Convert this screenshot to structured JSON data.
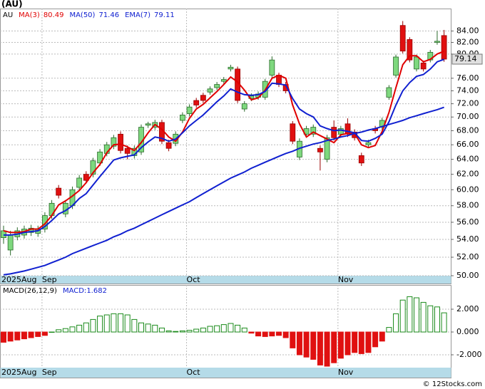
{
  "chart_data": [
    {
      "type": "candlestick",
      "title": "(AU)",
      "symbol": "AU",
      "categories": [
        "2025Aug",
        null,
        null,
        null,
        null,
        null,
        "Sep",
        null,
        null,
        null,
        null,
        null,
        null,
        null,
        null,
        null,
        null,
        null,
        null,
        null,
        null,
        null,
        null,
        null,
        null,
        null,
        null,
        "Oct",
        null,
        null,
        null,
        null,
        null,
        null,
        null,
        null,
        null,
        null,
        null,
        null,
        null,
        null,
        null,
        null,
        null,
        null,
        null,
        null,
        null,
        "Nov",
        null,
        null,
        null,
        null,
        null,
        null,
        null,
        null,
        null,
        null,
        null,
        null,
        null,
        null,
        null
      ],
      "open": [
        54.2,
        52.8,
        54.3,
        54.5,
        54.8,
        54.7,
        55.2,
        56.8,
        60.2,
        57,
        58,
        60.3,
        62,
        62,
        63.5,
        64.8,
        65.8,
        67.5,
        65.5,
        64.5,
        65,
        68.8,
        68.5,
        69.2,
        66.3,
        66.2,
        69.5,
        70.5,
        72.5,
        73.3,
        73.8,
        74.5,
        75.5,
        77.5,
        77.5,
        71.2,
        72.8,
        73,
        73,
        76.5,
        76.5,
        75,
        69,
        64.3,
        67.5,
        67.5,
        65.5,
        64,
        68.5,
        67.5,
        69,
        67.8,
        64.5,
        66,
        68.3,
        68.5,
        73,
        76.5,
        85,
        82.5,
        77.5,
        78.5,
        79,
        82,
        83.2
      ],
      "high": [
        55.6,
        55,
        55.4,
        55.6,
        55.7,
        55.6,
        57.2,
        58.7,
        60.6,
        58.7,
        60.4,
        61.9,
        62.4,
        64.2,
        65.4,
        66.4,
        67.4,
        67.9,
        65.9,
        65.9,
        68.9,
        69.3,
        69.6,
        69.6,
        66.7,
        67.9,
        70.7,
        71.9,
        72.9,
        73.7,
        74.7,
        75.4,
        76.2,
        78.2,
        77.9,
        72.4,
        73.6,
        73.9,
        75.9,
        79.6,
        76.9,
        75.4,
        69.4,
        66.9,
        68.7,
        68.9,
        65.9,
        67.4,
        69.5,
        68.7,
        69.8,
        68.2,
        64.9,
        66.7,
        68.7,
        69.9,
        74.9,
        79.9,
        85.8,
        82.9,
        79.9,
        78.9,
        80.7,
        84,
        84.2
      ],
      "low": [
        53.5,
        52.2,
        53.9,
        54.1,
        54.4,
        54.3,
        54.8,
        56.4,
        58.9,
        56.6,
        57.6,
        59.9,
        60.8,
        61.6,
        63.1,
        64.4,
        65.4,
        64.8,
        64,
        64.1,
        64.6,
        68.4,
        68.1,
        66.1,
        65.1,
        65.8,
        69.1,
        70.1,
        71.4,
        72.1,
        73.4,
        74.1,
        75.1,
        77.1,
        72.1,
        70.8,
        72.4,
        72.6,
        72.6,
        76.1,
        74.6,
        73.6,
        66.1,
        63.9,
        67.1,
        67.1,
        62.5,
        63.6,
        66.6,
        67.1,
        67.1,
        66.6,
        63.1,
        65.6,
        67.6,
        68.1,
        72.6,
        76.1,
        80.1,
        78.6,
        77.1,
        77.1,
        78.6,
        81.6,
        78.7
      ],
      "close": [
        55,
        54.5,
        55,
        55.2,
        55.3,
        55.2,
        56.8,
        58.3,
        59.3,
        58.3,
        60,
        61.5,
        61.2,
        63.8,
        65,
        66,
        67,
        65.2,
        64.8,
        65.5,
        68.5,
        69,
        69.2,
        66.5,
        65.5,
        67.5,
        70.3,
        71.5,
        71.8,
        72.5,
        74.3,
        75,
        75.8,
        77.8,
        72.5,
        72,
        73.2,
        73.5,
        75.5,
        79,
        75,
        74,
        66.5,
        66.5,
        68.3,
        68.5,
        65,
        67,
        67,
        68.3,
        67.5,
        67,
        63.5,
        66.3,
        68,
        69.5,
        74.5,
        79.5,
        80.5,
        79,
        79.5,
        77.5,
        80.3,
        82.2,
        79.14
      ],
      "up_color": "#7ed87e",
      "down_color": "#e01010",
      "series": [
        {
          "name": "MA(3)",
          "color": "#e00000",
          "values": [
            55,
            54.8,
            54.8,
            54.9,
            55.2,
            55.2,
            55.8,
            56.8,
            58.1,
            58.6,
            59.2,
            59.9,
            60.9,
            62.2,
            63.3,
            64.9,
            66,
            66.1,
            65.7,
            65.2,
            66.3,
            67.7,
            68.9,
            68.2,
            67.1,
            66.5,
            67.8,
            69.8,
            71.2,
            71.9,
            72.9,
            73.9,
            75,
            76.2,
            75.4,
            74.1,
            72.6,
            72.9,
            74.1,
            76,
            76.5,
            76,
            71.8,
            69,
            67.1,
            67.8,
            67.3,
            66.8,
            66.3,
            67.4,
            67.6,
            67.6,
            66,
            65.6,
            65.9,
            67.9,
            70.7,
            74.5,
            78.2,
            79.7,
            79.7,
            78.7,
            79.1,
            80,
            80.49
          ]
        },
        {
          "name": "MA(50)",
          "color": "#1020d0",
          "values": [
            50.1,
            50.2,
            50.35,
            50.5,
            50.7,
            50.9,
            51.1,
            51.4,
            51.7,
            52,
            52.4,
            52.7,
            53,
            53.3,
            53.6,
            53.9,
            54.3,
            54.6,
            55,
            55.3,
            55.7,
            56.1,
            56.5,
            56.9,
            57.3,
            57.7,
            58.1,
            58.5,
            59,
            59.5,
            60,
            60.5,
            61,
            61.5,
            61.9,
            62.3,
            62.8,
            63.2,
            63.6,
            64,
            64.4,
            64.8,
            65.1,
            65.5,
            65.8,
            66.1,
            66.3,
            66.6,
            66.8,
            67.1,
            67.3,
            67.6,
            67.8,
            68.1,
            68.3,
            68.6,
            68.9,
            69.2,
            69.5,
            69.9,
            70.2,
            70.5,
            70.8,
            71.1,
            71.46
          ]
        },
        {
          "name": "EMA(7)",
          "color": "#1020d0",
          "values": [
            54.5,
            54.5,
            54.6,
            54.8,
            54.9,
            55,
            55.5,
            56.2,
            57,
            57.4,
            58,
            58.9,
            59.5,
            60.6,
            61.7,
            62.8,
            63.9,
            64.2,
            64.4,
            64.6,
            65.6,
            66.4,
            67.1,
            66.9,
            66.5,
            66.8,
            67.7,
            68.7,
            69.5,
            70.3,
            71.3,
            72.3,
            73.2,
            74.3,
            73.8,
            73.4,
            73.3,
            73.4,
            73.9,
            75.2,
            75.1,
            74.9,
            72.8,
            71.2,
            70.5,
            70,
            68.7,
            68.3,
            68,
            68.1,
            67.9,
            67.7,
            66.6,
            66.5,
            66.9,
            67.5,
            69.3,
            71.8,
            74,
            75.3,
            76.3,
            76.6,
            77.5,
            78.7,
            79.11
          ]
        }
      ],
      "log_scale": true,
      "grid": true,
      "ylim": [
        50,
        88.1
      ],
      "yticks": [
        {
          "value": 50,
          "label": "50.00"
        },
        {
          "value": 52,
          "label": "52.00"
        },
        {
          "value": 54,
          "label": "54.00"
        },
        {
          "value": 56,
          "label": "56.00"
        },
        {
          "value": 58,
          "label": "58.00"
        },
        {
          "value": 60,
          "label": "60.00"
        },
        {
          "value": 62,
          "label": "62.00"
        },
        {
          "value": 64,
          "label": "64.00"
        },
        {
          "value": 66,
          "label": "66.00"
        },
        {
          "value": 68,
          "label": "68.00"
        },
        {
          "value": 70,
          "label": "70.00"
        },
        {
          "value": 72,
          "label": "72.00"
        },
        {
          "value": 74,
          "label": "74.00"
        },
        {
          "value": 76,
          "label": "76.00"
        },
        {
          "value": 80,
          "label": "80.00"
        },
        {
          "value": 82,
          "label": "82.00"
        },
        {
          "value": 84,
          "label": "84.00"
        }
      ]
    },
    {
      "type": "bar",
      "title": "MACD(26,12,9)",
      "categories": [
        "2025Aug",
        null,
        null,
        null,
        null,
        null,
        "Sep",
        null,
        null,
        null,
        null,
        null,
        null,
        null,
        null,
        null,
        null,
        null,
        null,
        null,
        null,
        null,
        null,
        null,
        null,
        null,
        null,
        "Oct",
        null,
        null,
        null,
        null,
        null,
        null,
        null,
        null,
        null,
        null,
        null,
        null,
        null,
        null,
        null,
        null,
        null,
        null,
        null,
        null,
        null,
        "Nov",
        null,
        null,
        null,
        null,
        null,
        null,
        null,
        null,
        null,
        null,
        null,
        null,
        null,
        null,
        null
      ],
      "series": [
        {
          "name": "MACD:",
          "color": "#1a8a1a",
          "negative_color": "#e01010",
          "values": [
            -0.9,
            -0.8,
            -0.7,
            -0.6,
            -0.5,
            -0.4,
            -0.3,
            0,
            0.2,
            0.3,
            0.45,
            0.6,
            0.8,
            1.1,
            1.4,
            1.5,
            1.6,
            1.6,
            1.5,
            1.1,
            0.8,
            0.7,
            0.6,
            0.35,
            0.1,
            0.05,
            0.1,
            0.15,
            0.25,
            0.35,
            0.5,
            0.55,
            0.65,
            0.75,
            0.6,
            0.35,
            -0.1,
            -0.35,
            -0.4,
            -0.35,
            -0.3,
            -0.5,
            -1.4,
            -2,
            -2.2,
            -2.4,
            -2.9,
            -3,
            -2.7,
            -2.3,
            -2,
            -1.8,
            -1.9,
            -1.8,
            -1.3,
            -0.8,
            0.4,
            1.6,
            2.8,
            3.1,
            3,
            2.6,
            2.3,
            2.2,
            1.682
          ]
        }
      ],
      "grid": true,
      "ylim": [
        -3.125,
        4.125
      ],
      "yticks": [
        {
          "value": 2,
          "label": "2.000"
        },
        {
          "value": 0,
          "label": "0.000"
        },
        {
          "value": -2,
          "label": "-2.000"
        }
      ]
    }
  ],
  "credit": "© 12Stocks.com"
}
